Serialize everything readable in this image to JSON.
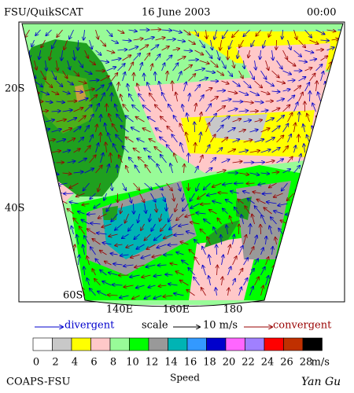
{
  "header": {
    "title": "FSU/QuikSCAT",
    "date": "16 June 2003",
    "time": "00:00"
  },
  "latitude_labels": [
    "20S",
    "40S",
    "60S"
  ],
  "longitude_labels": [
    "140E",
    "160E",
    "180"
  ],
  "arrow_legend": {
    "divergent": "divergent",
    "scale": "scale",
    "scale_value": "10 m/s",
    "convergent": "convergent"
  },
  "speed_legend": {
    "labels": [
      "0",
      "2",
      "4",
      "6",
      "8",
      "10",
      "12",
      "14",
      "16",
      "18",
      "20",
      "22",
      "24",
      "26",
      "28"
    ],
    "colors": [
      "#ffffff",
      "#c8c8c8",
      "#ffff00",
      "#ffc8c8",
      "#98fb98",
      "#00ff00",
      "#999999",
      "#00b4b4",
      "#3399ff",
      "#0000cc",
      "#ff66ff",
      "#a080ff",
      "#ff0000",
      "#c03000",
      "#000000"
    ],
    "unit": "m/s",
    "title": "Speed"
  },
  "footer": {
    "left": "COAPS-FSU",
    "right": "Yan Gu"
  }
}
